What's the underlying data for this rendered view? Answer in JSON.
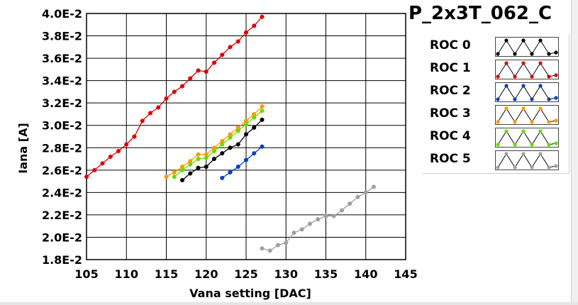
{
  "chart_data": {
    "type": "line",
    "title": "P_2x3T_062_C",
    "xlabel": "Vana setting [DAC]",
    "ylabel": "Iana [A]",
    "xlim": [
      105,
      145
    ],
    "ylim": [
      0.018,
      0.04
    ],
    "x_ticks": [
      105,
      110,
      115,
      120,
      125,
      130,
      135,
      140,
      145
    ],
    "x_tick_labels": [
      "105",
      "110",
      "115",
      "120",
      "125",
      "130",
      "135",
      "140",
      "145"
    ],
    "y_ticks": [
      0.018,
      0.02,
      0.022,
      0.024,
      0.026,
      0.028,
      0.03,
      0.032,
      0.034,
      0.036,
      0.038,
      0.04
    ],
    "y_tick_labels": [
      "1.8E-2",
      "2.0E-2",
      "2.2E-2",
      "2.4E-2",
      "2.6E-2",
      "2.8E-2",
      "3.0E-2",
      "3.2E-2",
      "3.4E-2",
      "3.6E-2",
      "3.8E-2",
      "4.0E-2"
    ],
    "grid": true,
    "legend_position": "right",
    "series": [
      {
        "name": "ROC 0",
        "color": "#000000",
        "x": [
          117,
          118,
          119,
          120,
          121,
          122,
          123,
          124,
          125,
          126,
          127
        ],
        "y": [
          0.0251,
          0.0257,
          0.0262,
          0.0263,
          0.027,
          0.0275,
          0.028,
          0.0283,
          0.0292,
          0.0298,
          0.0305
        ]
      },
      {
        "name": "ROC 1",
        "color": "#dd0000",
        "x": [
          105,
          106,
          107,
          108,
          109,
          110,
          111,
          112,
          113,
          114,
          115,
          116,
          117,
          118,
          119,
          120,
          121,
          122,
          123,
          124,
          125,
          126,
          127
        ],
        "y": [
          0.0254,
          0.026,
          0.0266,
          0.0272,
          0.0277,
          0.0283,
          0.029,
          0.0304,
          0.0311,
          0.0316,
          0.0324,
          0.033,
          0.0335,
          0.0342,
          0.0349,
          0.0348,
          0.0356,
          0.0363,
          0.037,
          0.0375,
          0.0383,
          0.0389,
          0.0397
        ]
      },
      {
        "name": "ROC 2",
        "color": "#0040c0",
        "x": [
          122,
          123,
          124,
          125,
          126,
          127
        ],
        "y": [
          0.0253,
          0.0258,
          0.0263,
          0.0269,
          0.0275,
          0.0281
        ]
      },
      {
        "name": "ROC 3",
        "color": "#ff9900",
        "x": [
          115,
          116,
          117,
          118,
          119,
          120,
          121,
          122,
          123,
          124,
          125,
          126,
          127
        ],
        "y": [
          0.0254,
          0.0258,
          0.0263,
          0.0268,
          0.0274,
          0.0274,
          0.028,
          0.0286,
          0.0292,
          0.0298,
          0.0304,
          0.031,
          0.0317
        ]
      },
      {
        "name": "ROC 4",
        "color": "#66dd00",
        "x": [
          116,
          117,
          118,
          119,
          120,
          121,
          122,
          123,
          124,
          125,
          126,
          127
        ],
        "y": [
          0.0254,
          0.026,
          0.0265,
          0.027,
          0.0271,
          0.0277,
          0.0283,
          0.0289,
          0.0295,
          0.0301,
          0.0307,
          0.0313
        ]
      },
      {
        "name": "ROC 5",
        "color": "#a0a0a0",
        "x": [
          127,
          128,
          129,
          130,
          131,
          132,
          133,
          134,
          135,
          136,
          137,
          138,
          139,
          140,
          141
        ],
        "y": [
          0.019,
          0.0188,
          0.0193,
          0.0195,
          0.0204,
          0.0207,
          0.0212,
          0.0216,
          0.0219,
          0.0219,
          0.0224,
          0.023,
          0.0236,
          0.024,
          0.0245
        ]
      }
    ]
  }
}
